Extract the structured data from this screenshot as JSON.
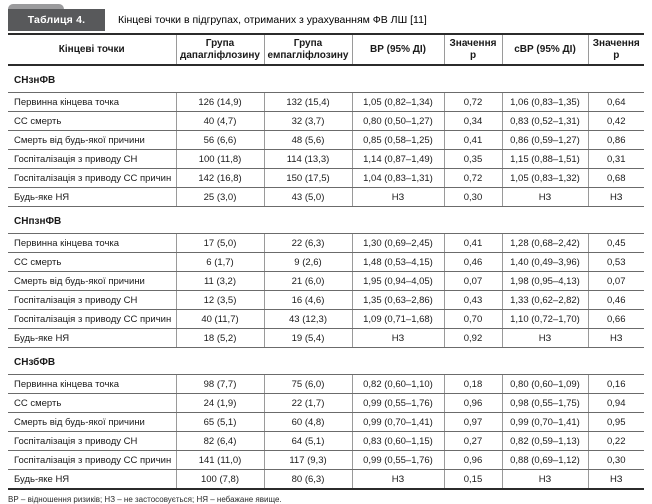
{
  "header": {
    "table_label": "Таблиця 4.",
    "title": "Кінцеві точки в підгрупах, отриманих з урахуванням ФВ ЛШ [11]"
  },
  "colors": {
    "label_box": "#58595b",
    "label_tab": "#9b9b9d",
    "border_strong": "#2b2b2b",
    "border_light": "#9a9a9a"
  },
  "chart_data": {
    "type": "table",
    "title": "Кінцеві точки в підгрупах, отриманих з урахуванням ФВ ЛШ [11]",
    "columns": [
      "Кінцеві точки",
      "Група дапагліфлозину",
      "Група емпагліфлозину",
      "ВР (95% ДІ)",
      "Значення р",
      "сВР (95% ДІ)",
      "Значення р"
    ],
    "sections": [
      {
        "name": "СНзнФВ",
        "rows": [
          [
            "Первинна кінцева точка",
            "126 (14,9)",
            "132 (15,4)",
            "1,05 (0,82–1,34)",
            "0,72",
            "1,06 (0,83–1,35)",
            "0,64"
          ],
          [
            "СС смерть",
            "40 (4,7)",
            "32 (3,7)",
            "0,80 (0,50–1,27)",
            "0,34",
            "0,83 (0,52–1,31)",
            "0,42"
          ],
          [
            "Смерть від будь-якої причини",
            "56 (6,6)",
            "48 (5,6)",
            "0,85 (0,58–1,25)",
            "0,41",
            "0,86 (0,59–1,27)",
            "0,86"
          ],
          [
            "Госпіталізація з приводу СН",
            "100 (11,8)",
            "114 (13,3)",
            "1,14 (0,87–1,49)",
            "0,35",
            "1,15 (0,88–1,51)",
            "0,31"
          ],
          [
            "Госпіталізація з приводу СС причин",
            "142 (16,8)",
            "150 (17,5)",
            "1,04 (0,83–1,31)",
            "0,72",
            "1,05 (0,83–1,32)",
            "0,68"
          ],
          [
            "Будь-яке НЯ",
            "25 (3,0)",
            "43 (5,0)",
            "НЗ",
            "0,30",
            "НЗ",
            "НЗ"
          ]
        ]
      },
      {
        "name": "СНпзнФВ",
        "rows": [
          [
            "Первинна кінцева точка",
            "17 (5,0)",
            "22 (6,3)",
            "1,30 (0,69–2,45)",
            "0,41",
            "1,28 (0,68–2,42)",
            "0,45"
          ],
          [
            "СС смерть",
            "6 (1,7)",
            "9 (2,6)",
            "1,48 (0,53–4,15)",
            "0,46",
            "1,40 (0,49–3,96)",
            "0,53"
          ],
          [
            "Смерть від будь-якої причини",
            "11 (3,2)",
            "21 (6,0)",
            "1,95 (0,94–4,05)",
            "0,07",
            "1,98 (0,95–4,13)",
            "0,07"
          ],
          [
            "Госпіталізація з приводу СН",
            "12 (3,5)",
            "16 (4,6)",
            "1,35 (0,63–2,86)",
            "0,43",
            "1,33 (0,62–2,82)",
            "0,46"
          ],
          [
            "Госпіталізація з приводу СС причин",
            "40 (11,7)",
            "43 (12,3)",
            "1,09 (0,71–1,68)",
            "0,70",
            "1,10 (0,72–1,70)",
            "0,66"
          ],
          [
            "Будь-яке НЯ",
            "18 (5,2)",
            "19 (5,4)",
            "НЗ",
            "0,92",
            "НЗ",
            "НЗ"
          ]
        ]
      },
      {
        "name": "СНзбФВ",
        "rows": [
          [
            "Первинна кінцева точка",
            "98 (7,7)",
            "75 (6,0)",
            "0,82 (0,60–1,10)",
            "0,18",
            "0,80 (0,60–1,09)",
            "0,16"
          ],
          [
            "СС смерть",
            "24 (1,9)",
            "22 (1,7)",
            "0,99 (0,55–1,76)",
            "0,96",
            "0,98 (0,55–1,75)",
            "0,94"
          ],
          [
            "Смерть від будь-якої причини",
            "65 (5,1)",
            "60 (4,8)",
            "0,99 (0,70–1,41)",
            "0,97",
            "0,99 (0,70–1,41)",
            "0,95"
          ],
          [
            "Госпіталізація з приводу СН",
            "82 (6,4)",
            "64 (5,1)",
            "0,83 (0,60–1,15)",
            "0,27",
            "0,82 (0,59–1,13)",
            "0,22"
          ],
          [
            "Госпіталізація з приводу СС причин",
            "141 (11,0)",
            "117 (9,3)",
            "0,99 (0,55–1,76)",
            "0,96",
            "0,88 (0,69–1,12)",
            "0,30"
          ],
          [
            "Будь-яке НЯ",
            "100 (7,8)",
            "80 (6,3)",
            "НЗ",
            "0,15",
            "НЗ",
            "НЗ"
          ]
        ]
      }
    ]
  },
  "footnote": "ВР – відношення ризиків; НЗ – не застосовується; НЯ – небажане явище."
}
